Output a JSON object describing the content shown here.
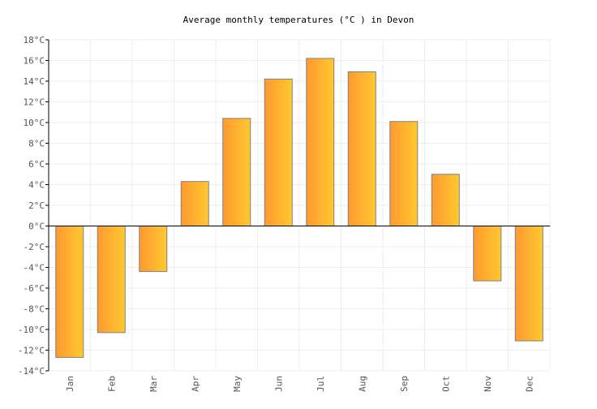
{
  "chart_data": {
    "type": "bar",
    "title": "Average monthly temperatures (°C ) in Devon",
    "xlabel": "",
    "ylabel": "",
    "categories": [
      "Jan",
      "Feb",
      "Mar",
      "Apr",
      "May",
      "Jun",
      "Jul",
      "Aug",
      "Sep",
      "Oct",
      "Nov",
      "Dec"
    ],
    "values": [
      -12.7,
      -10.3,
      -4.4,
      4.3,
      10.4,
      14.2,
      16.2,
      14.9,
      10.1,
      5.0,
      -5.3,
      -11.1
    ],
    "ylim": [
      -14,
      18
    ],
    "yticks": [
      18,
      16,
      14,
      12,
      10,
      8,
      6,
      4,
      2,
      0,
      -2,
      -4,
      -6,
      -8,
      -10,
      -12,
      -14
    ],
    "ytick_labels": [
      "18°C",
      "16°C",
      "14°C",
      "12°C",
      "10°C",
      "8°C",
      "6°C",
      "4°C",
      "2°C",
      "0°C",
      "-2°C",
      "-4°C",
      "-6°C",
      "-8°C",
      "-10°C",
      "-12°C",
      "-14°C"
    ],
    "grid": true,
    "legend": "none",
    "colors": {
      "bar_left": "#ff9a30",
      "bar_right": "#ffc830",
      "bar_border": "#808080",
      "grid": "#eeeeee",
      "axis": "#000000"
    }
  }
}
